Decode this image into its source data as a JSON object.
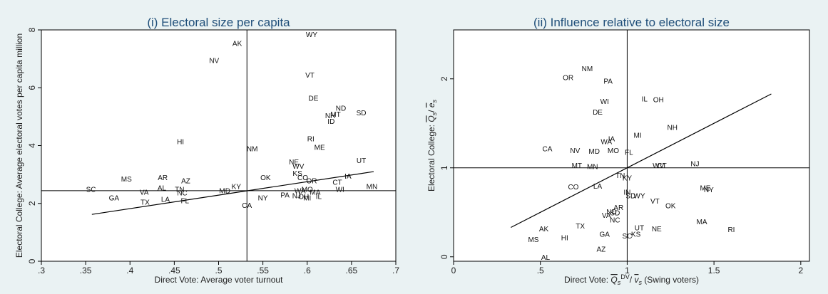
{
  "chart_data": [
    {
      "type": "scatter",
      "title": "(i) Electoral size per capita",
      "xlabel": "Direct Vote: Average voter turnout",
      "ylabel": "Electoral College: Average electoral votes per capita million",
      "xlim": [
        0.3,
        0.7
      ],
      "ylim": [
        0,
        8
      ],
      "xticks": [
        ".3",
        ".35",
        ".4",
        ".45",
        ".5",
        ".55",
        ".6",
        ".65",
        ".7"
      ],
      "xtick_values": [
        0.3,
        0.35,
        0.4,
        0.45,
        0.5,
        0.55,
        0.6,
        0.65,
        0.7
      ],
      "yticks": [
        "0",
        "2",
        "4",
        "6",
        "8"
      ],
      "ytick_values": [
        0,
        2,
        4,
        6,
        8
      ],
      "grid": false,
      "ref_lines": {
        "vertical": 0.532,
        "horizontal": 2.44
      },
      "fit_line": [
        [
          0.357,
          1.62
        ],
        [
          0.675,
          3.1
        ]
      ],
      "points": [
        {
          "label": "WY",
          "x": 0.605,
          "y": 7.85
        },
        {
          "label": "AK",
          "x": 0.521,
          "y": 7.55
        },
        {
          "label": "NV",
          "x": 0.495,
          "y": 6.95
        },
        {
          "label": "VT",
          "x": 0.603,
          "y": 6.45
        },
        {
          "label": "DE",
          "x": 0.607,
          "y": 5.65
        },
        {
          "label": "ND",
          "x": 0.638,
          "y": 5.3
        },
        {
          "label": "SD",
          "x": 0.661,
          "y": 5.15
        },
        {
          "label": "MT",
          "x": 0.632,
          "y": 5.1
        },
        {
          "label": "NH",
          "x": 0.626,
          "y": 5.05
        },
        {
          "label": "ID",
          "x": 0.627,
          "y": 4.85
        },
        {
          "label": "HI",
          "x": 0.457,
          "y": 4.15
        },
        {
          "label": "RI",
          "x": 0.604,
          "y": 4.25
        },
        {
          "label": "ME",
          "x": 0.614,
          "y": 3.95
        },
        {
          "label": "NM",
          "x": 0.538,
          "y": 3.9
        },
        {
          "label": "UT",
          "x": 0.661,
          "y": 3.5
        },
        {
          "label": "NE",
          "x": 0.585,
          "y": 3.45
        },
        {
          "label": "WV",
          "x": 0.59,
          "y": 3.3
        },
        {
          "label": "KS",
          "x": 0.589,
          "y": 3.05
        },
        {
          "label": "IA",
          "x": 0.646,
          "y": 2.95
        },
        {
          "label": "OK",
          "x": 0.553,
          "y": 2.9
        },
        {
          "label": "CO",
          "x": 0.595,
          "y": 2.9
        },
        {
          "label": "OR",
          "x": 0.605,
          "y": 2.8
        },
        {
          "label": "CT",
          "x": 0.634,
          "y": 2.75
        },
        {
          "label": "MS",
          "x": 0.396,
          "y": 2.85
        },
        {
          "label": "AR",
          "x": 0.437,
          "y": 2.9
        },
        {
          "label": "AZ",
          "x": 0.463,
          "y": 2.8
        },
        {
          "label": "KY",
          "x": 0.52,
          "y": 2.6
        },
        {
          "label": "AL",
          "x": 0.436,
          "y": 2.55
        },
        {
          "label": "TN",
          "x": 0.456,
          "y": 2.5
        },
        {
          "label": "MD",
          "x": 0.507,
          "y": 2.45
        },
        {
          "label": "SC",
          "x": 0.356,
          "y": 2.5
        },
        {
          "label": "VA",
          "x": 0.416,
          "y": 2.4
        },
        {
          "label": "NC",
          "x": 0.459,
          "y": 2.38
        },
        {
          "label": "MO",
          "x": 0.6,
          "y": 2.5
        },
        {
          "label": "WA",
          "x": 0.592,
          "y": 2.45
        },
        {
          "label": "WI",
          "x": 0.637,
          "y": 2.5
        },
        {
          "label": "MN",
          "x": 0.673,
          "y": 2.6
        },
        {
          "label": "MA",
          "x": 0.609,
          "y": 2.4
        },
        {
          "label": "GA",
          "x": 0.382,
          "y": 2.2
        },
        {
          "label": "TX",
          "x": 0.417,
          "y": 2.05
        },
        {
          "label": "LA",
          "x": 0.44,
          "y": 2.15
        },
        {
          "label": "FL",
          "x": 0.462,
          "y": 2.1
        },
        {
          "label": "PA",
          "x": 0.575,
          "y": 2.3
        },
        {
          "label": "NJ",
          "x": 0.588,
          "y": 2.28
        },
        {
          "label": "OH",
          "x": 0.596,
          "y": 2.25
        },
        {
          "label": "MI",
          "x": 0.6,
          "y": 2.2
        },
        {
          "label": "IL",
          "x": 0.613,
          "y": 2.25
        },
        {
          "label": "NY",
          "x": 0.55,
          "y": 2.2
        },
        {
          "label": "CA",
          "x": 0.532,
          "y": 1.95
        }
      ]
    },
    {
      "type": "scatter",
      "title": "(ii) Influence relative to electoral size",
      "xlabel": "Direct Vote: Q̄s^DV / v̄s (Swing voters)",
      "ylabel": "Electoral College: Q̄s / ēs",
      "xlim": [
        0,
        2.05
      ],
      "ylim": [
        -0.05,
        2.55
      ],
      "xticks": [
        "0",
        ".5",
        "1",
        "1.5",
        "2"
      ],
      "xtick_values": [
        0,
        0.5,
        1,
        1.5,
        2
      ],
      "yticks": [
        "0",
        "1",
        "2"
      ],
      "ytick_values": [
        0,
        1,
        2
      ],
      "grid": false,
      "ref_lines": {
        "vertical": 1.0,
        "horizontal": 1.0
      },
      "fit_line": [
        [
          0.33,
          0.33
        ],
        [
          1.83,
          1.83
        ]
      ],
      "points": [
        {
          "label": "NM",
          "x": 0.77,
          "y": 2.12
        },
        {
          "label": "OR",
          "x": 0.66,
          "y": 2.02
        },
        {
          "label": "PA",
          "x": 0.89,
          "y": 1.98
        },
        {
          "label": "IL",
          "x": 1.1,
          "y": 1.78
        },
        {
          "label": "OH",
          "x": 1.18,
          "y": 1.77
        },
        {
          "label": "WI",
          "x": 0.87,
          "y": 1.75
        },
        {
          "label": "DE",
          "x": 0.83,
          "y": 1.63
        },
        {
          "label": "NH",
          "x": 1.26,
          "y": 1.46
        },
        {
          "label": "MI",
          "x": 1.06,
          "y": 1.37
        },
        {
          "label": "IA",
          "x": 0.91,
          "y": 1.33
        },
        {
          "label": "WA",
          "x": 0.88,
          "y": 1.3
        },
        {
          "label": "CA",
          "x": 0.54,
          "y": 1.22
        },
        {
          "label": "NV",
          "x": 0.7,
          "y": 1.2
        },
        {
          "label": "MD",
          "x": 0.81,
          "y": 1.19
        },
        {
          "label": "MO",
          "x": 0.92,
          "y": 1.2
        },
        {
          "label": "FL",
          "x": 1.01,
          "y": 1.18
        },
        {
          "label": "NJ",
          "x": 1.39,
          "y": 1.05
        },
        {
          "label": "WV",
          "x": 1.18,
          "y": 1.03
        },
        {
          "label": "CT",
          "x": 1.2,
          "y": 1.03
        },
        {
          "label": "MT",
          "x": 0.71,
          "y": 1.03
        },
        {
          "label": "MN",
          "x": 0.8,
          "y": 1.02
        },
        {
          "label": "TN",
          "x": 0.96,
          "y": 0.92
        },
        {
          "label": "KY",
          "x": 1.0,
          "y": 0.89
        },
        {
          "label": "CO",
          "x": 0.69,
          "y": 0.79
        },
        {
          "label": "LA",
          "x": 0.83,
          "y": 0.8
        },
        {
          "label": "ME",
          "x": 1.45,
          "y": 0.78
        },
        {
          "label": "NY",
          "x": 1.47,
          "y": 0.76
        },
        {
          "label": "IN",
          "x": 1.0,
          "y": 0.73
        },
        {
          "label": "SD",
          "x": 1.02,
          "y": 0.69
        },
        {
          "label": "WY",
          "x": 1.07,
          "y": 0.69
        },
        {
          "label": "VT",
          "x": 1.16,
          "y": 0.63
        },
        {
          "label": "OK",
          "x": 1.25,
          "y": 0.58
        },
        {
          "label": "AR",
          "x": 0.95,
          "y": 0.56
        },
        {
          "label": "ND",
          "x": 0.91,
          "y": 0.51
        },
        {
          "label": "SD",
          "x": 0.93,
          "y": 0.5
        },
        {
          "label": "VA",
          "x": 0.88,
          "y": 0.47
        },
        {
          "label": "NC",
          "x": 0.93,
          "y": 0.42
        },
        {
          "label": "MA",
          "x": 1.43,
          "y": 0.4
        },
        {
          "label": "TX",
          "x": 0.73,
          "y": 0.35
        },
        {
          "label": "UT",
          "x": 1.07,
          "y": 0.33
        },
        {
          "label": "NE",
          "x": 1.17,
          "y": 0.32
        },
        {
          "label": "AK",
          "x": 0.52,
          "y": 0.32
        },
        {
          "label": "RI",
          "x": 1.6,
          "y": 0.31
        },
        {
          "label": "KS",
          "x": 1.05,
          "y": 0.26
        },
        {
          "label": "SC",
          "x": 1.0,
          "y": 0.24
        },
        {
          "label": "GA",
          "x": 0.87,
          "y": 0.26
        },
        {
          "label": "HI",
          "x": 0.64,
          "y": 0.22
        },
        {
          "label": "MS",
          "x": 0.46,
          "y": 0.2
        },
        {
          "label": "AZ",
          "x": 0.85,
          "y": 0.09
        },
        {
          "label": "AL",
          "x": 0.53,
          "y": 0.0
        }
      ]
    }
  ]
}
